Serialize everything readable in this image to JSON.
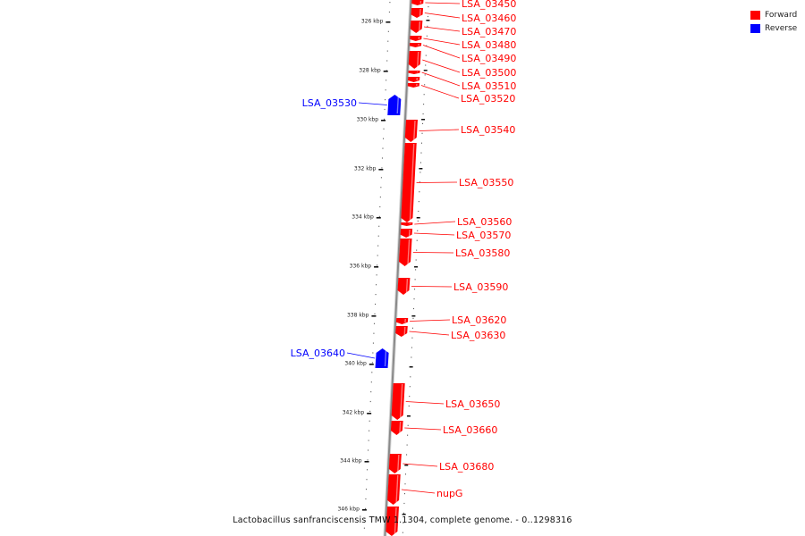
{
  "caption": "Lactobacillus sanfranciscensis TMW 1.1304, complete genome. - 0..1298316",
  "legend": [
    {
      "label": "Forward",
      "color": "#ff0000"
    },
    {
      "label": "Reverse",
      "color": "#0000ff"
    }
  ],
  "colors": {
    "forward": "#ff0000",
    "reverse": "#0000ff",
    "backbone": "#8a8a8a"
  },
  "ticks": [
    "326 kbp",
    "328 kbp",
    "330 kbp",
    "332 kbp",
    "334 kbp",
    "336 kbp",
    "338 kbp",
    "340 kbp",
    "342 kbp",
    "344 kbp",
    "346 kbp"
  ],
  "genes": [
    {
      "label": "LSA_03450",
      "strand": "forward"
    },
    {
      "label": "LSA_03460",
      "strand": "forward"
    },
    {
      "label": "LSA_03470",
      "strand": "forward"
    },
    {
      "label": "LSA_03480",
      "strand": "forward"
    },
    {
      "label": "LSA_03490",
      "strand": "forward"
    },
    {
      "label": "LSA_03500",
      "strand": "forward"
    },
    {
      "label": "LSA_03510",
      "strand": "forward"
    },
    {
      "label": "LSA_03520",
      "strand": "forward"
    },
    {
      "label": "LSA_03530",
      "strand": "reverse"
    },
    {
      "label": "LSA_03540",
      "strand": "forward"
    },
    {
      "label": "LSA_03550",
      "strand": "forward"
    },
    {
      "label": "LSA_03560",
      "strand": "forward"
    },
    {
      "label": "LSA_03570",
      "strand": "forward"
    },
    {
      "label": "LSA_03580",
      "strand": "forward"
    },
    {
      "label": "LSA_03590",
      "strand": "forward"
    },
    {
      "label": "LSA_03620",
      "strand": "forward"
    },
    {
      "label": "LSA_03630",
      "strand": "forward"
    },
    {
      "label": "LSA_03640",
      "strand": "reverse"
    },
    {
      "label": "LSA_03650",
      "strand": "forward"
    },
    {
      "label": "LSA_03660",
      "strand": "forward"
    },
    {
      "label": "LSA_03680",
      "strand": "forward"
    },
    {
      "label": "nupG",
      "strand": "forward"
    },
    {
      "label": "",
      "strand": "forward"
    }
  ]
}
